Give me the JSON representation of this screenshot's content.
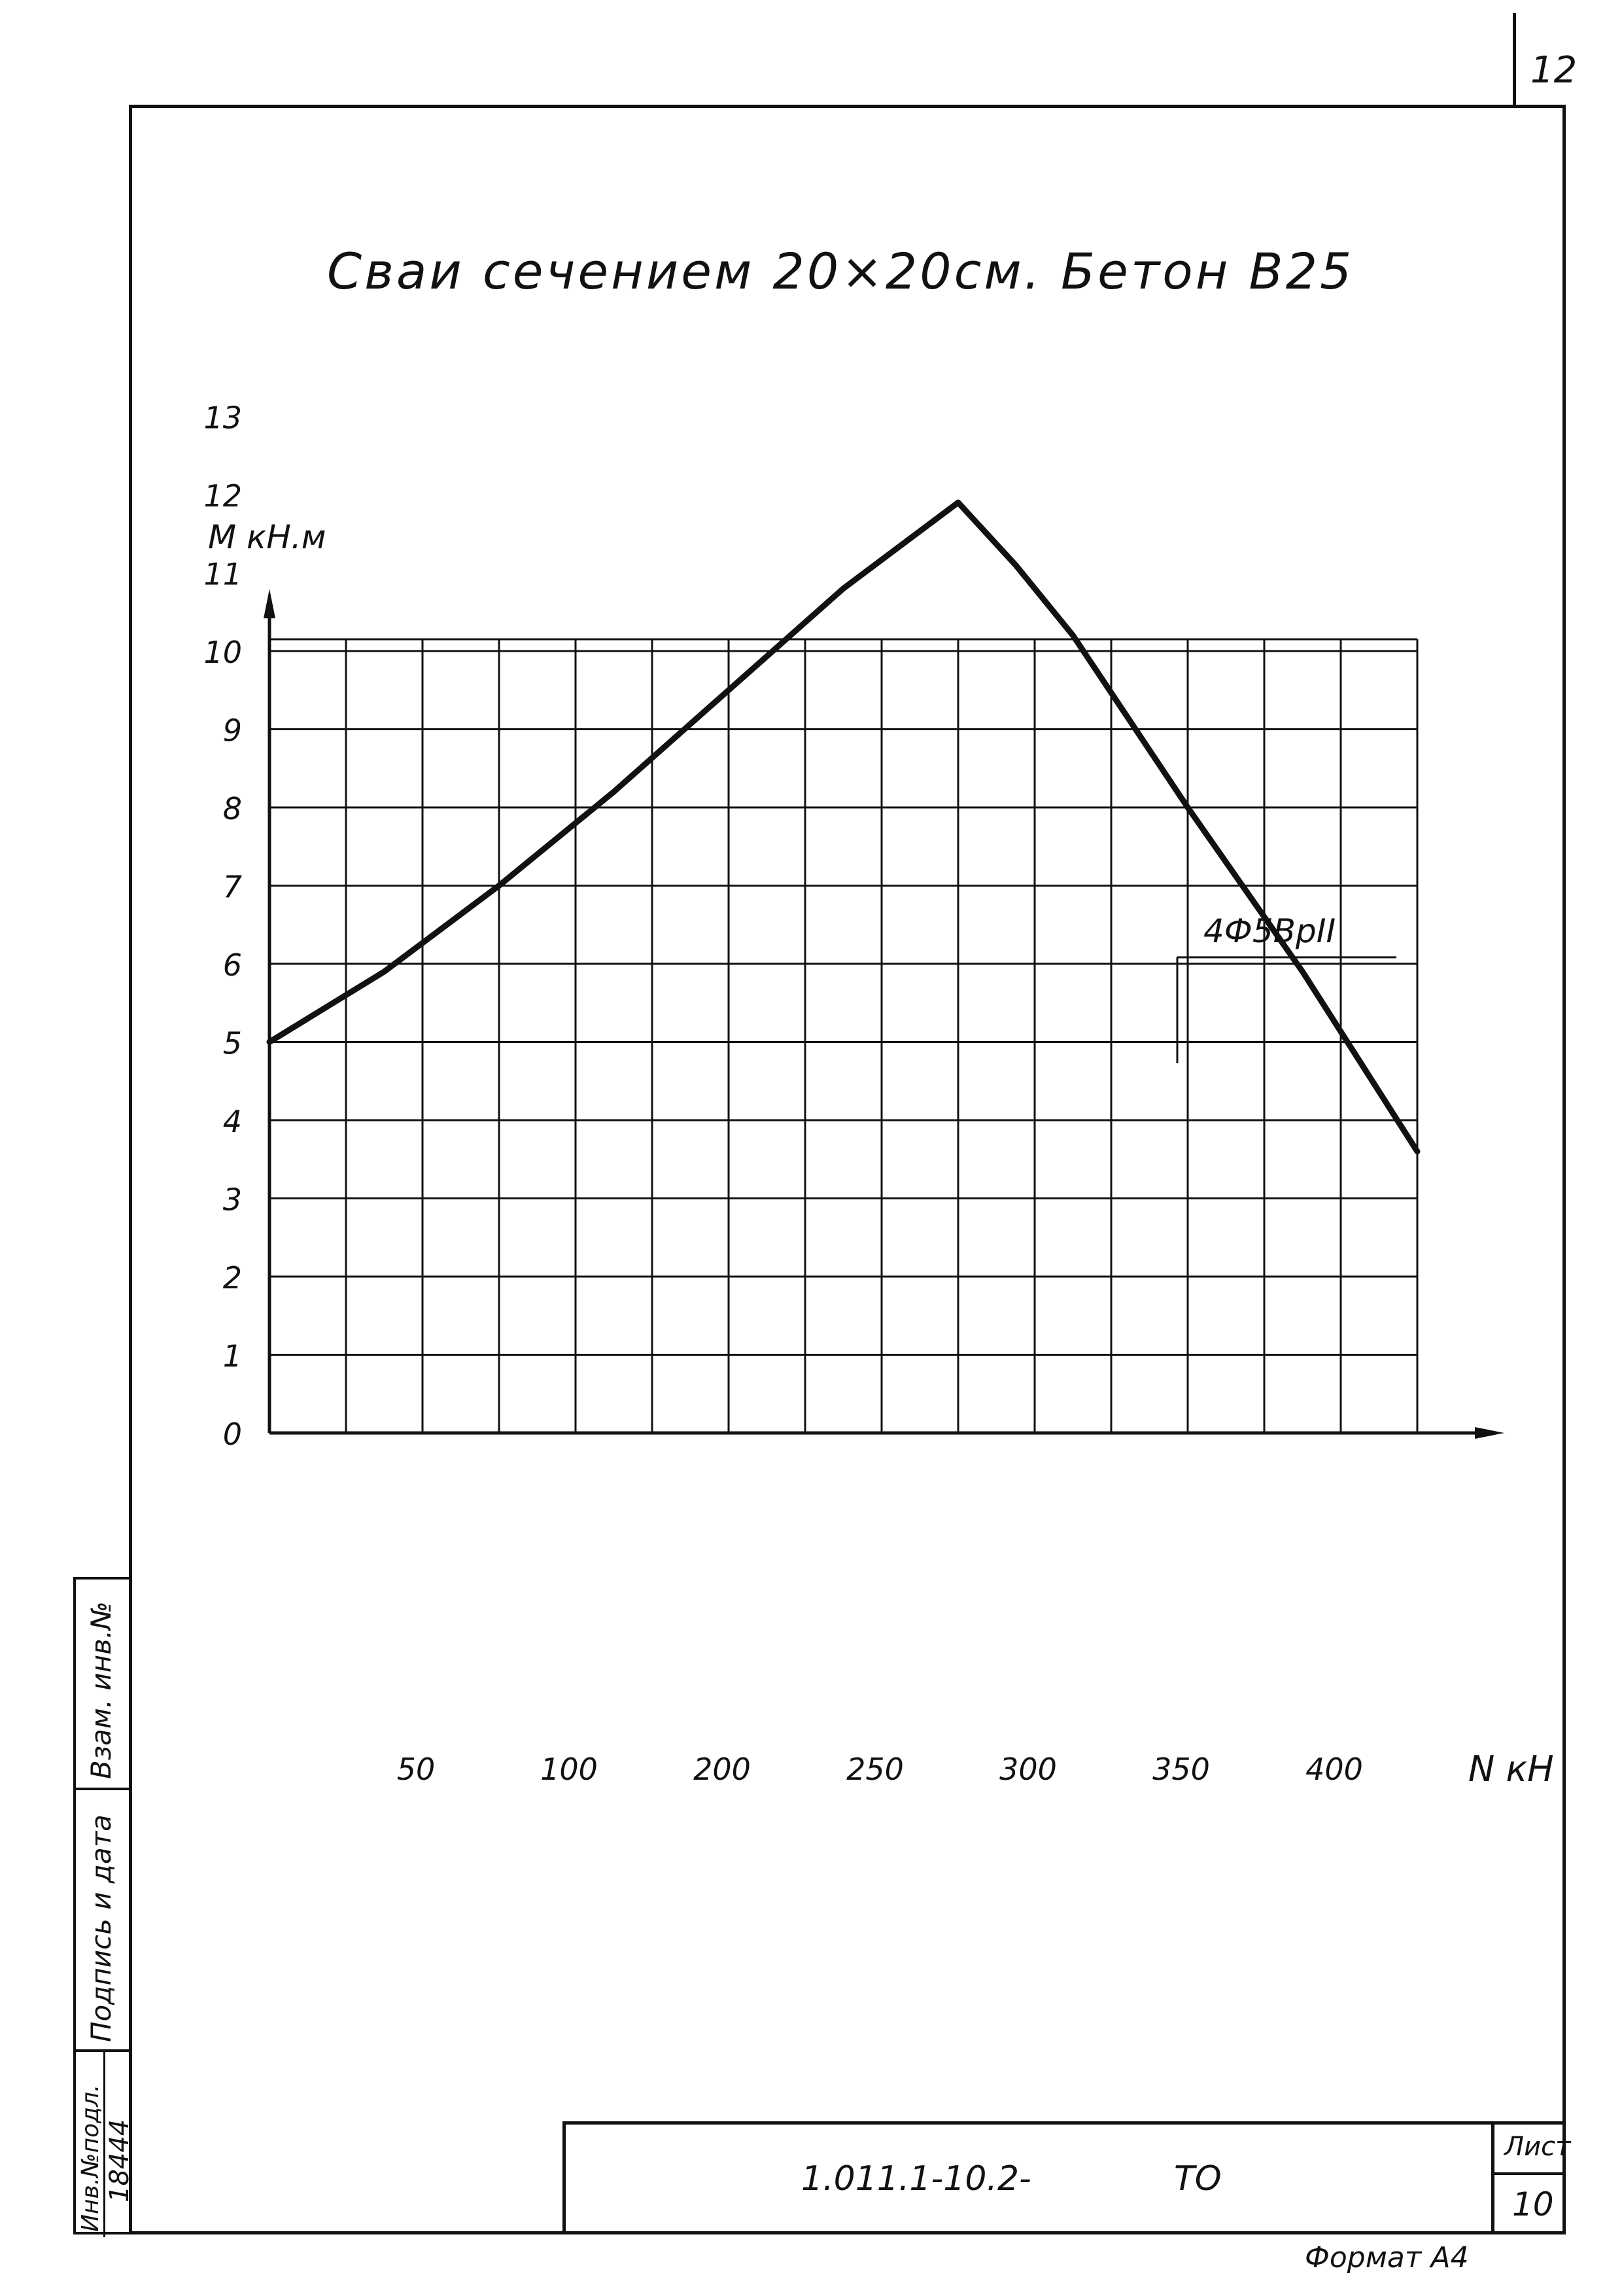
{
  "page": {
    "page_number": "12",
    "title": "Сваи сечением 20×20см.  Бетон В25"
  },
  "chart_data": {
    "type": "line",
    "title": "Сваи сечением 20×20см.  Бетон В25",
    "xlabel": "N кН",
    "ylabel": "M кН.м",
    "x_tick_labels": [
      "50",
      "100",
      "200",
      "250",
      "300",
      "350",
      "400"
    ],
    "y_tick_labels": [
      "0",
      "1",
      "2",
      "3",
      "4",
      "5",
      "6",
      "7",
      "8",
      "9",
      "10",
      "11",
      "12",
      "13"
    ],
    "ylim": [
      0,
      13
    ],
    "grid": true,
    "annotation": "4Ф5ВрII",
    "series": [
      {
        "name": "4Ф5ВрII",
        "points": [
          {
            "x": 0,
            "y": 5.0
          },
          {
            "x": 50,
            "y": 5.9
          },
          {
            "x": 100,
            "y": 7.0
          },
          {
            "x": 150,
            "y": 8.2
          },
          {
            "x": 200,
            "y": 9.5
          },
          {
            "x": 250,
            "y": 10.8
          },
          {
            "x": 300,
            "y": 11.9
          },
          {
            "x": 325,
            "y": 11.1
          },
          {
            "x": 350,
            "y": 10.2
          },
          {
            "x": 400,
            "y": 8.0
          },
          {
            "x": 450,
            "y": 5.9
          },
          {
            "x": 500,
            "y": 3.6
          }
        ]
      }
    ]
  },
  "stamp": {
    "inv_podl_label": "Инв.№подл.",
    "inv_podl_value": "18444",
    "podpis_label": "Подпись и дата",
    "vzam_label": "Взам. инв.№"
  },
  "title_block": {
    "doc_code": "1.011.1-10.2-",
    "doc_suffix": "ТО",
    "sheet_label": "Лист",
    "sheet_number": "10"
  },
  "format_label": "Формат А4"
}
